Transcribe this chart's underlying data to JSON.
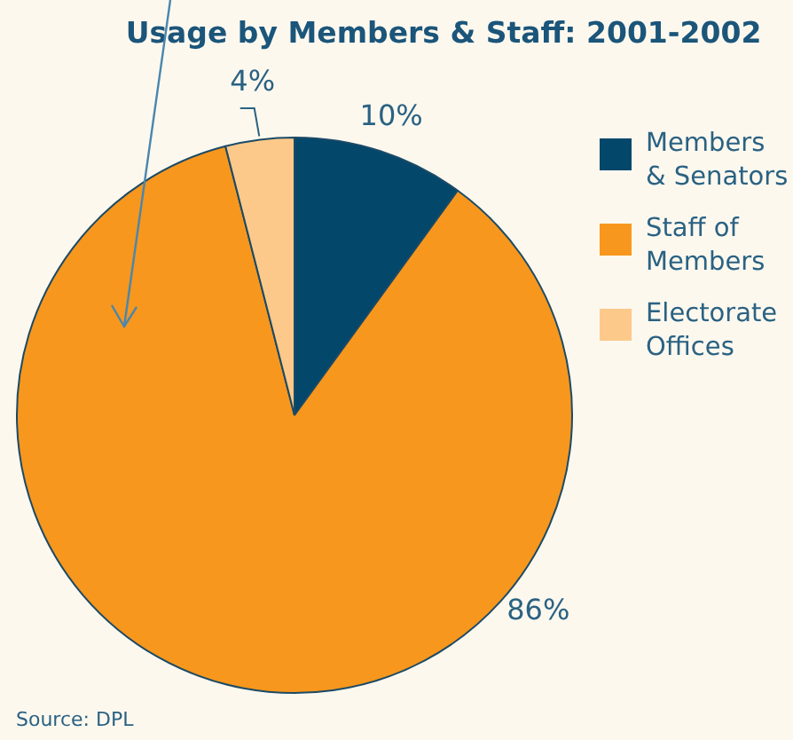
{
  "chart_data": {
    "type": "pie",
    "title": "Usage by Members & Staff: 2001-2002",
    "categories": [
      "Members\n& Senators",
      "Staff of\nMembers",
      "Electorate\nOffices"
    ],
    "values": [
      10,
      86,
      4
    ],
    "colors": [
      "#03476b",
      "#f7971d",
      "#fcc98a"
    ],
    "value_labels": [
      "10%",
      "86%",
      "4%"
    ],
    "legend": "right",
    "annotations": [
      "Source: DPL"
    ]
  }
}
